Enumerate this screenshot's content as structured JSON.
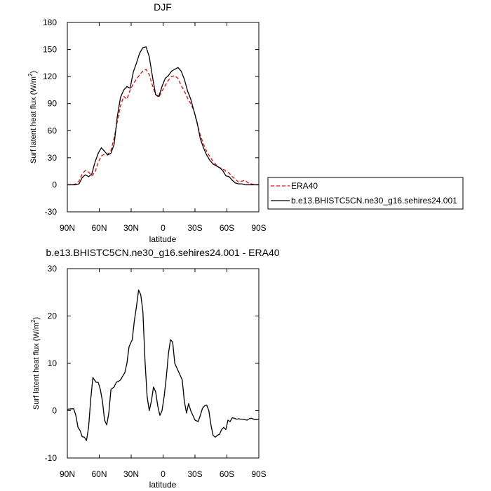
{
  "chart_data": [
    {
      "type": "line",
      "title": "DJF",
      "xlabel": "latitude",
      "ylabel": "Surf latent heat flux (W/m",
      "ylabel_sup": "2",
      "ylabel_tail": ")",
      "xlim": [
        90,
        -90
      ],
      "ylim": [
        -30,
        180
      ],
      "xticks": [
        90,
        60,
        30,
        0,
        -30,
        -60,
        -90
      ],
      "xtick_labels": [
        "90N",
        "60N",
        "30N",
        "0",
        "30S",
        "60S",
        "90S"
      ],
      "yticks": [
        -30,
        0,
        30,
        60,
        90,
        120,
        150,
        180
      ],
      "ytick_labels": [
        "-30",
        "0",
        "30",
        "60",
        "90",
        "120",
        "150",
        "180"
      ],
      "grid": false,
      "legend": "right",
      "series": [
        {
          "name": "ERA40",
          "color": "#ff0000",
          "dash": "dashed",
          "x": [
            90,
            85,
            82,
            79,
            76,
            73,
            70,
            67,
            64,
            61,
            58,
            55,
            52,
            49,
            46,
            43,
            40,
            37,
            34,
            31,
            28,
            25,
            22,
            19,
            16,
            13,
            10,
            7,
            4,
            1,
            -2,
            -5,
            -8,
            -11,
            -14,
            -17,
            -20,
            -23,
            -26,
            -29,
            -32,
            -35,
            -38,
            -41,
            -44,
            -47,
            -50,
            -53,
            -56,
            -59,
            -62,
            -65,
            -68,
            -71,
            -74,
            -77,
            -80,
            -83,
            -86,
            -90
          ],
          "y": [
            0,
            0,
            1,
            4,
            12,
            16,
            14,
            10,
            14,
            25,
            32,
            34,
            34,
            38,
            52,
            70,
            88,
            98,
            95,
            105,
            112,
            117,
            122,
            126,
            128,
            122,
            110,
            100,
            97,
            104,
            110,
            116,
            120,
            121,
            118,
            110,
            104,
            96,
            90,
            82,
            68,
            55,
            45,
            37,
            31,
            26,
            22,
            19,
            18,
            15,
            13,
            9,
            6,
            3,
            4,
            5,
            2,
            1,
            0,
            0
          ]
        },
        {
          "name": "b.e13.BHISTC5CN.ne30_g16.sehires24.001",
          "color": "#000000",
          "dash": "solid",
          "x": [
            90,
            85,
            82,
            79,
            76,
            73,
            70,
            67,
            64,
            61,
            58,
            55,
            52,
            49,
            46,
            43,
            40,
            37,
            34,
            31,
            28,
            25,
            22,
            19,
            16,
            13,
            10,
            7,
            4,
            1,
            -2,
            -5,
            -8,
            -11,
            -14,
            -17,
            -20,
            -23,
            -26,
            -29,
            -32,
            -35,
            -38,
            -41,
            -44,
            -47,
            -50,
            -53,
            -56,
            -59,
            -62,
            -65,
            -68,
            -71,
            -74,
            -77,
            -80,
            -83,
            -86,
            -90
          ],
          "y": [
            0,
            0,
            0,
            1,
            8,
            11,
            9,
            12,
            25,
            35,
            41,
            37,
            33,
            35,
            45,
            76,
            97,
            105,
            109,
            107,
            125,
            135,
            146,
            152,
            153,
            142,
            120,
            100,
            98,
            109,
            118,
            121,
            126,
            128,
            130,
            126,
            117,
            104,
            95,
            82,
            69,
            51,
            41,
            33,
            27,
            23,
            21,
            19,
            16,
            10,
            9,
            5,
            2,
            1,
            1,
            0,
            0,
            0,
            0,
            0
          ]
        }
      ]
    },
    {
      "type": "line",
      "title": "b.e13.BHISTC5CN.ne30_g16.sehires24.001 - ERA40",
      "xlabel": "latitude",
      "ylabel": "Surf latent heat flux (W/m",
      "ylabel_sup": "2",
      "ylabel_tail": ")",
      "xlim": [
        90,
        -90
      ],
      "ylim": [
        -10,
        30
      ],
      "xticks": [
        90,
        60,
        30,
        0,
        -30,
        -60,
        -90
      ],
      "xtick_labels": [
        "90N",
        "60N",
        "30N",
        "0",
        "30S",
        "60S",
        "90S"
      ],
      "yticks": [
        -10,
        0,
        10,
        20,
        30
      ],
      "ytick_labels": [
        "-10",
        "0",
        "10",
        "20",
        "30"
      ],
      "grid": false,
      "series": [
        {
          "color": "#000000",
          "dash": "solid",
          "x": [
            90,
            86,
            84,
            82,
            80,
            78,
            76,
            74,
            72,
            70,
            68,
            66,
            63,
            61,
            59,
            57,
            55,
            53,
            51,
            49,
            46,
            44,
            42,
            40,
            38,
            36,
            34,
            32,
            29,
            27,
            25,
            23,
            21,
            19,
            17,
            15,
            13,
            11,
            9,
            7,
            5,
            3,
            1,
            -1,
            -3,
            -5,
            -7,
            -9,
            -11,
            -13,
            -16,
            -18,
            -20,
            -22,
            -24,
            -26,
            -28,
            -30,
            -33,
            -35,
            -37,
            -39,
            -41,
            -43,
            -45,
            -47,
            -49,
            -51,
            -53,
            -55,
            -57,
            -59,
            -61,
            -63,
            -65,
            -67,
            -69,
            -71,
            -73,
            -75,
            -77,
            -79,
            -81,
            -83,
            -85,
            -87,
            -90
          ],
          "y": [
            0.3,
            0.4,
            0.4,
            -1.0,
            -3.5,
            -4.2,
            -5.5,
            -5.6,
            -6.3,
            -3.5,
            2.5,
            7.0,
            6.0,
            6.0,
            4.5,
            2.0,
            -2.0,
            -3.0,
            -0.5,
            4.5,
            5.0,
            6.0,
            6.2,
            6.5,
            7.3,
            8.0,
            10.0,
            13.5,
            15.0,
            19.0,
            22.0,
            25.5,
            24.5,
            21.0,
            10.5,
            3.0,
            0.0,
            2.0,
            5.0,
            4.0,
            1.0,
            -1.0,
            0.0,
            3.0,
            7.0,
            12.0,
            15.0,
            14.5,
            10.0,
            9.0,
            7.5,
            6.5,
            2.0,
            -0.5,
            1.5,
            0.0,
            -1.0,
            -2.0,
            -2.3,
            -1.0,
            0.5,
            1.0,
            1.2,
            0.0,
            -3.0,
            -5.2,
            -5.6,
            -5.2,
            -5.0,
            -4.0,
            -3.5,
            -4.0,
            -2.0,
            -2.3,
            -1.5,
            -1.6,
            -1.8,
            -1.7,
            -1.8,
            -1.8,
            -1.9,
            -2.0,
            -1.7,
            -1.6,
            -1.8,
            -1.9,
            -1.8
          ]
        }
      ]
    }
  ]
}
